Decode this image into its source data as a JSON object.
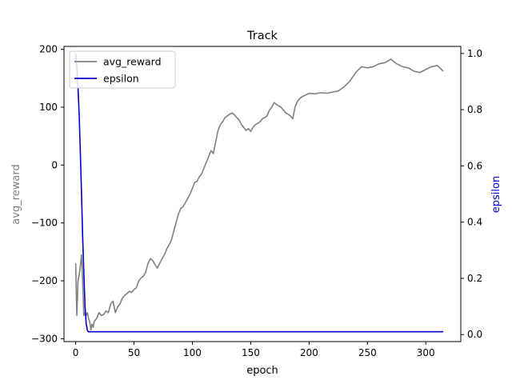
{
  "chart_data": {
    "type": "line",
    "title": "Track",
    "xlabel": "epoch",
    "ylabel_left": "avg_reward",
    "ylabel_right": "epsilon",
    "xlim": [
      -10,
      330
    ],
    "ylim_left": [
      -305,
      205
    ],
    "ylim_right": [
      -0.025,
      1.025
    ],
    "x_ticks": [
      0,
      50,
      100,
      150,
      200,
      250,
      300
    ],
    "y_ticks_left": [
      200,
      100,
      0,
      -100,
      -200,
      -300
    ],
    "y_ticks_right": [
      1.0,
      0.8,
      0.6,
      0.4,
      0.2,
      0.0
    ],
    "grid": false,
    "legend": {
      "placement": "top-left",
      "entries": [
        "avg_reward",
        "epsilon"
      ]
    },
    "colors": {
      "avg_reward": "#808080",
      "epsilon": "#0000cc",
      "right_axis_label": "#0000cc",
      "left_axis_label": "#808080"
    },
    "series": [
      {
        "name": "avg_reward",
        "axis": "left",
        "x": [
          0,
          1,
          2,
          3,
          4,
          5,
          6,
          7,
          8,
          9,
          10,
          11,
          12,
          13,
          14,
          15,
          16,
          18,
          20,
          22,
          24,
          26,
          28,
          30,
          32,
          34,
          36,
          38,
          40,
          42,
          44,
          46,
          48,
          50,
          52,
          54,
          56,
          58,
          60,
          62,
          64,
          66,
          68,
          70,
          72,
          74,
          76,
          78,
          80,
          82,
          84,
          86,
          88,
          90,
          92,
          94,
          96,
          98,
          100,
          102,
          104,
          106,
          108,
          110,
          112,
          114,
          116,
          118,
          120,
          122,
          124,
          126,
          128,
          130,
          132,
          134,
          136,
          138,
          140,
          142,
          144,
          146,
          148,
          150,
          152,
          154,
          156,
          158,
          160,
          162,
          164,
          166,
          168,
          170,
          172,
          174,
          176,
          178,
          180,
          182,
          184,
          186,
          188,
          190,
          192,
          194,
          196,
          198,
          200,
          205,
          210,
          215,
          220,
          225,
          230,
          235,
          240,
          245,
          250,
          255,
          260,
          265,
          270,
          275,
          280,
          285,
          290,
          295,
          300,
          305,
          310,
          312,
          315
        ],
        "values": [
          -170,
          -260,
          -200,
          -190,
          -175,
          -155,
          -200,
          -260,
          -255,
          -260,
          -255,
          -265,
          -270,
          -285,
          -275,
          -280,
          -270,
          -265,
          -255,
          -260,
          -258,
          -252,
          -255,
          -240,
          -235,
          -255,
          -245,
          -240,
          -230,
          -225,
          -222,
          -218,
          -220,
          -215,
          -212,
          -200,
          -195,
          -192,
          -185,
          -170,
          -162,
          -165,
          -172,
          -178,
          -170,
          -162,
          -155,
          -145,
          -138,
          -130,
          -115,
          -100,
          -85,
          -75,
          -72,
          -65,
          -58,
          -50,
          -40,
          -30,
          -28,
          -20,
          -15,
          -5,
          5,
          15,
          25,
          20,
          40,
          60,
          70,
          75,
          82,
          85,
          88,
          90,
          87,
          82,
          78,
          70,
          65,
          60,
          63,
          58,
          65,
          70,
          72,
          75,
          80,
          82,
          85,
          95,
          100,
          108,
          105,
          102,
          100,
          95,
          90,
          88,
          85,
          80,
          100,
          110,
          115,
          118,
          120,
          122,
          124,
          123,
          125,
          124,
          126,
          128,
          135,
          145,
          160,
          170,
          168,
          170,
          175,
          177,
          183,
          175,
          170,
          168,
          162,
          160,
          165,
          170,
          172,
          168,
          162
        ]
      },
      {
        "name": "epsilon",
        "axis": "right",
        "x": [
          0,
          1,
          2,
          3,
          4,
          5,
          6,
          7,
          8,
          9,
          10,
          11,
          12,
          15,
          20,
          50,
          100,
          150,
          200,
          250,
          300,
          315
        ],
        "values": [
          1.0,
          0.95,
          0.88,
          0.78,
          0.65,
          0.5,
          0.35,
          0.22,
          0.1,
          0.04,
          0.015,
          0.01,
          0.01,
          0.01,
          0.01,
          0.01,
          0.01,
          0.01,
          0.01,
          0.01,
          0.01,
          0.01
        ]
      }
    ]
  }
}
